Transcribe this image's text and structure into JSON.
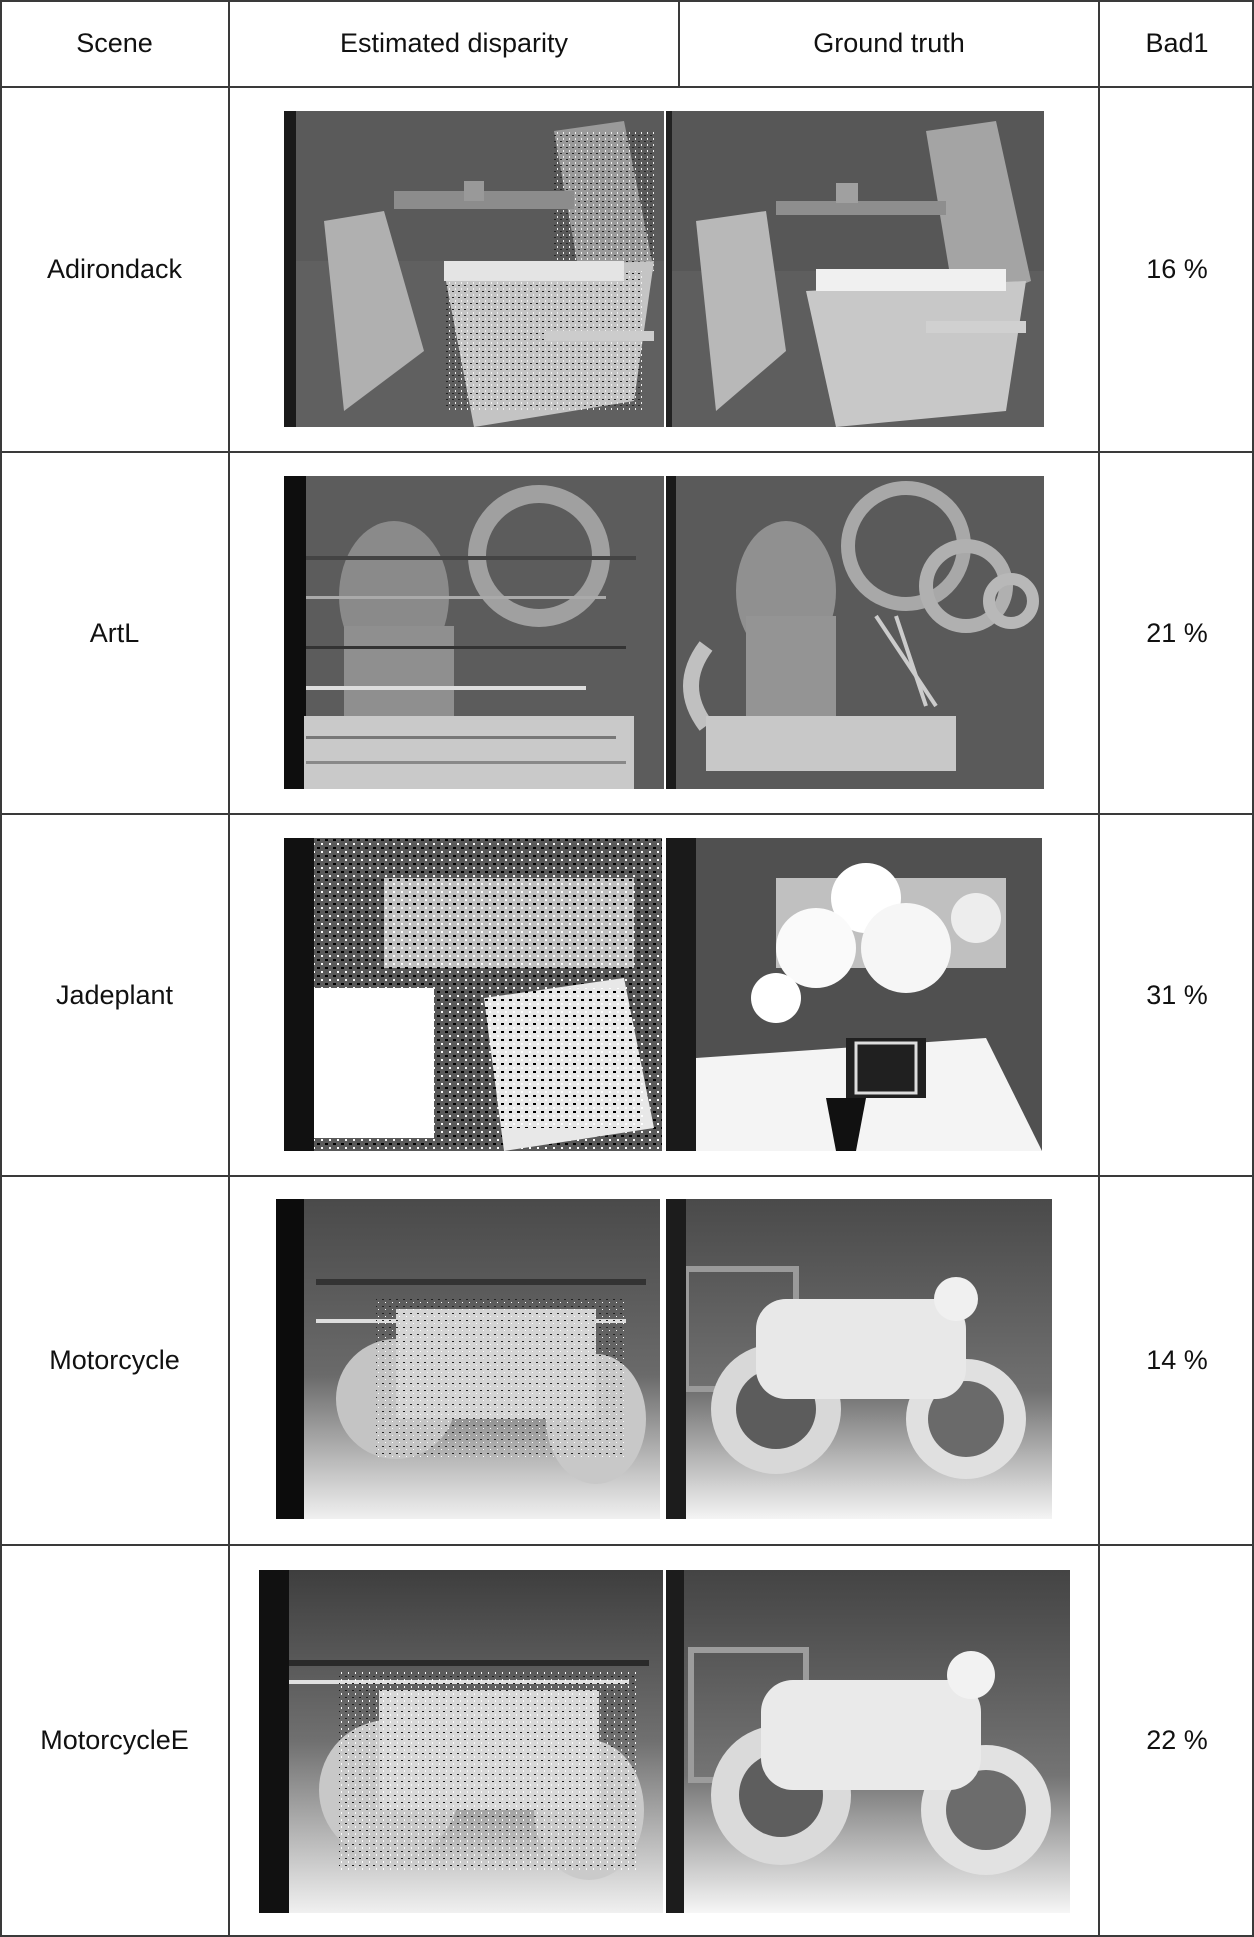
{
  "table": {
    "headers": {
      "scene": "Scene",
      "estimated": "Estimated disparity",
      "ground_truth": "Ground truth",
      "bad1": "Bad1"
    },
    "rows": [
      {
        "scene": "Adirondack",
        "bad1": "16 %"
      },
      {
        "scene": "ArtL",
        "bad1": "21 %"
      },
      {
        "scene": "Jadeplant",
        "bad1": "31 %"
      },
      {
        "scene": "Motorcycle",
        "bad1": "14 %"
      },
      {
        "scene": "MotorcycleE",
        "bad1": "22 %"
      }
    ]
  }
}
